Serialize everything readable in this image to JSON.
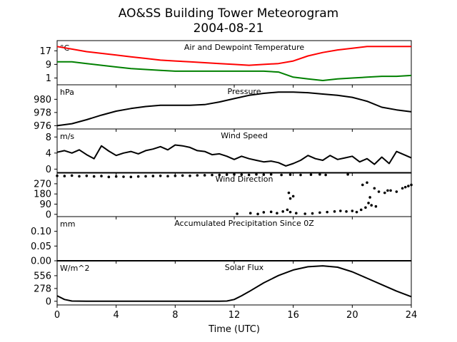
{
  "figure": {
    "title_line1": "AO&SS Building Tower Meteorogram",
    "title_line2": "2004-08-21",
    "xlabel": "Time (UTC)",
    "xlim": [
      0,
      24
    ],
    "xticks": [
      0,
      4,
      8,
      12,
      16,
      20,
      24
    ],
    "xtick_labels": [
      "0",
      "4",
      "8",
      "12",
      "16",
      "20",
      "24"
    ]
  },
  "chart_data": [
    {
      "type": "line",
      "title": "Air and Dewpoint Temperature",
      "unit_label": "°C",
      "ylim": [
        -3,
        23
      ],
      "yticks": [
        1,
        9,
        17
      ],
      "ytick_labels": [
        "1",
        "9",
        "17"
      ],
      "x": [
        0,
        1,
        2,
        3,
        4,
        5,
        6,
        7,
        8,
        9,
        10,
        11,
        12,
        13,
        14,
        15,
        16,
        17,
        18,
        19,
        20,
        21,
        22,
        23,
        24
      ],
      "series": [
        {
          "color": "#ff0000",
          "values": [
            19.5,
            18,
            16.5,
            15.5,
            14.5,
            13.5,
            12.5,
            11.5,
            11,
            10.5,
            10,
            9.5,
            9,
            8.5,
            9,
            9.5,
            11,
            14,
            16,
            17.5,
            18.5,
            19.5,
            19.5,
            19.5,
            19.5
          ]
        },
        {
          "color": "#008000",
          "values": [
            10.5,
            10.5,
            9.5,
            8.5,
            7.5,
            6.5,
            6,
            5.5,
            5,
            5,
            5,
            5,
            5,
            5,
            5,
            4.5,
            1.5,
            0.5,
            -0.5,
            0.5,
            1,
            1.5,
            2,
            2,
            2.5
          ]
        }
      ]
    },
    {
      "type": "line",
      "title": "Pressure",
      "unit_label": "hPa",
      "ylim": [
        975.5,
        982.2
      ],
      "yticks": [
        976,
        978,
        980
      ],
      "ytick_labels": [
        "976",
        "978",
        "980"
      ],
      "x": [
        0,
        1,
        2,
        3,
        4,
        5,
        6,
        7,
        8,
        9,
        10,
        11,
        12,
        13,
        14,
        15,
        16,
        17,
        18,
        19,
        20,
        21,
        22,
        23,
        24
      ],
      "series": [
        {
          "color": "#000000",
          "values": [
            976,
            976.3,
            976.9,
            977.6,
            978.2,
            978.6,
            978.9,
            979.1,
            979.1,
            979.1,
            979.2,
            979.6,
            980.1,
            980.6,
            980.9,
            981.1,
            981.1,
            981,
            980.8,
            980.6,
            980.3,
            979.7,
            978.8,
            978.4,
            978.1
          ]
        }
      ]
    },
    {
      "type": "line",
      "title": "Wind Speed",
      "unit_label": "m/s",
      "ylim": [
        -1,
        10
      ],
      "yticks": [
        0,
        4,
        8
      ],
      "ytick_labels": [
        "0",
        "4",
        "8"
      ],
      "x": [
        0,
        0.5,
        1,
        1.5,
        2,
        2.5,
        3,
        3.5,
        4,
        4.5,
        5,
        5.5,
        6,
        6.5,
        7,
        7.5,
        8,
        8.5,
        9,
        9.5,
        10,
        10.5,
        11,
        11.5,
        12,
        12.5,
        13,
        13.5,
        14,
        14.5,
        15,
        15.5,
        16,
        16.5,
        17,
        17.5,
        18,
        18.5,
        19,
        19.5,
        20,
        20.5,
        21,
        21.5,
        22,
        22.5,
        23,
        23.5,
        24
      ],
      "series": [
        {
          "color": "#000000",
          "values": [
            4.2,
            4.6,
            4,
            4.8,
            3.6,
            2.6,
            5.8,
            4.5,
            3.4,
            4,
            4.4,
            3.8,
            4.6,
            5,
            5.6,
            4.8,
            6,
            5.8,
            5.4,
            4.6,
            4.4,
            3.6,
            3.8,
            3.2,
            2.4,
            3.2,
            2.6,
            2.2,
            1.8,
            2,
            1.6,
            0.8,
            1.4,
            2.2,
            3.4,
            2.6,
            2.2,
            3.4,
            2.4,
            2.8,
            3.2,
            1.8,
            2.6,
            1.2,
            3,
            1.4,
            4.4,
            3.6,
            2.8
          ]
        }
      ]
    },
    {
      "type": "scatter",
      "title": "Wind Direction",
      "unit_label": "",
      "ylim": [
        -20,
        370
      ],
      "yticks": [
        0,
        90,
        180,
        270
      ],
      "ytick_labels": [
        "0",
        "90",
        "180",
        "270"
      ],
      "series": [
        {
          "color": "#000000",
          "points": [
            [
              0,
              340
            ],
            [
              0.5,
              338
            ],
            [
              1,
              342
            ],
            [
              1.5,
              336
            ],
            [
              2,
              340
            ],
            [
              2.5,
              335
            ],
            [
              3,
              338
            ],
            [
              3.5,
              330
            ],
            [
              4,
              334
            ],
            [
              4.5,
              332
            ],
            [
              5,
              330
            ],
            [
              5.5,
              334
            ],
            [
              6,
              336
            ],
            [
              6.5,
              338
            ],
            [
              7,
              340
            ],
            [
              7.5,
              337
            ],
            [
              8,
              340
            ],
            [
              8.5,
              342
            ],
            [
              9,
              340
            ],
            [
              9.5,
              344
            ],
            [
              10,
              345
            ],
            [
              10.5,
              347
            ],
            [
              11,
              348
            ],
            [
              11.5,
              350
            ],
            [
              12,
              352
            ],
            [
              12.5,
              350
            ],
            [
              13,
              348
            ],
            [
              13.5,
              352
            ],
            [
              14,
              350
            ],
            [
              14.5,
              352
            ],
            [
              15.2,
              348
            ],
            [
              15.8,
              350
            ],
            [
              16.5,
              348
            ],
            [
              17.2,
              350
            ],
            [
              17.8,
              352
            ],
            [
              18.2,
              348
            ],
            [
              19.7,
              352
            ],
            [
              12.2,
              5
            ],
            [
              13.1,
              10
            ],
            [
              13.6,
              3
            ],
            [
              14,
              18
            ],
            [
              14.5,
              22
            ],
            [
              14.9,
              10
            ],
            [
              15.3,
              25
            ],
            [
              15.6,
              40
            ],
            [
              15.8,
              20
            ],
            [
              15.7,
              190
            ],
            [
              16,
              160
            ],
            [
              15.8,
              140
            ],
            [
              16.2,
              10
            ],
            [
              16.8,
              5
            ],
            [
              17.3,
              8
            ],
            [
              17.8,
              15
            ],
            [
              18.3,
              20
            ],
            [
              18.8,
              25
            ],
            [
              19.2,
              30
            ],
            [
              19.6,
              25
            ],
            [
              20,
              30
            ],
            [
              20.3,
              20
            ],
            [
              20.6,
              40
            ],
            [
              20.9,
              60
            ],
            [
              21.1,
              100
            ],
            [
              21.3,
              80
            ],
            [
              20.7,
              260
            ],
            [
              21,
              280
            ],
            [
              21.2,
              150
            ],
            [
              21.5,
              230
            ],
            [
              21.8,
              200
            ],
            [
              22.2,
              190
            ],
            [
              22.6,
              210
            ],
            [
              23,
              200
            ],
            [
              23.4,
              230
            ],
            [
              23.8,
              250
            ],
            [
              24,
              260
            ],
            [
              21.6,
              70
            ],
            [
              22.4,
              210
            ],
            [
              23.6,
              240
            ]
          ]
        }
      ]
    },
    {
      "type": "line",
      "title": "Accumulated Precipitation Since 0Z",
      "unit_label": "mm",
      "ylim": [
        0,
        0.15
      ],
      "yticks": [
        0,
        0.05,
        0.1
      ],
      "ytick_labels": [
        "0.00",
        "0.05",
        "0.10"
      ],
      "x": [
        0,
        24
      ],
      "series": [
        {
          "color": "#000000",
          "values": [
            0,
            0
          ]
        }
      ]
    },
    {
      "type": "line",
      "title": "Solar Flux",
      "unit_label": "W/m^2",
      "ylim": [
        -80,
        880
      ],
      "yticks": [
        0,
        278,
        556
      ],
      "ytick_labels": [
        "0",
        "278",
        "556"
      ],
      "x": [
        0,
        0.5,
        1,
        2,
        4,
        6,
        8,
        10,
        11,
        11.5,
        12,
        12.5,
        13,
        14,
        15,
        16,
        17,
        18,
        19,
        20,
        21,
        22,
        23,
        24
      ],
      "series": [
        {
          "color": "#000000",
          "values": [
            120,
            40,
            5,
            0,
            0,
            0,
            0,
            0,
            0,
            5,
            40,
            120,
            210,
            400,
            560,
            680,
            750,
            770,
            740,
            640,
            500,
            360,
            220,
            100
          ]
        }
      ]
    }
  ]
}
